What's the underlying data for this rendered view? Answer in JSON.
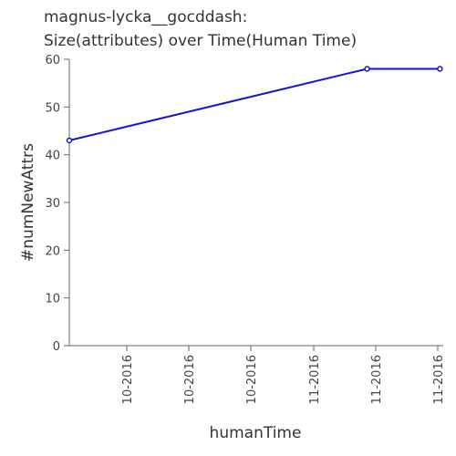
{
  "chart_data": {
    "type": "line",
    "title_lines": [
      "magnus-lycka__gocddash:",
      "Size(attributes) over Time(Human Time)"
    ],
    "xlabel": "humanTime",
    "ylabel": "#numNewAttrs",
    "x_ticks": [
      "10-2016",
      "10-2016",
      "10-2016",
      "11-2016",
      "11-2016",
      "11-2016"
    ],
    "y_ticks": [
      0,
      10,
      20,
      30,
      40,
      50,
      60
    ],
    "ylim": [
      0,
      60
    ],
    "grid": false,
    "series": [
      {
        "color": "#1414d2",
        "points": [
          {
            "x": "2016-09-22",
            "y": 43
          },
          {
            "x": "2016-11-06",
            "y": 58
          },
          {
            "x": "2016-11-17",
            "y": 58
          }
        ]
      }
    ]
  }
}
